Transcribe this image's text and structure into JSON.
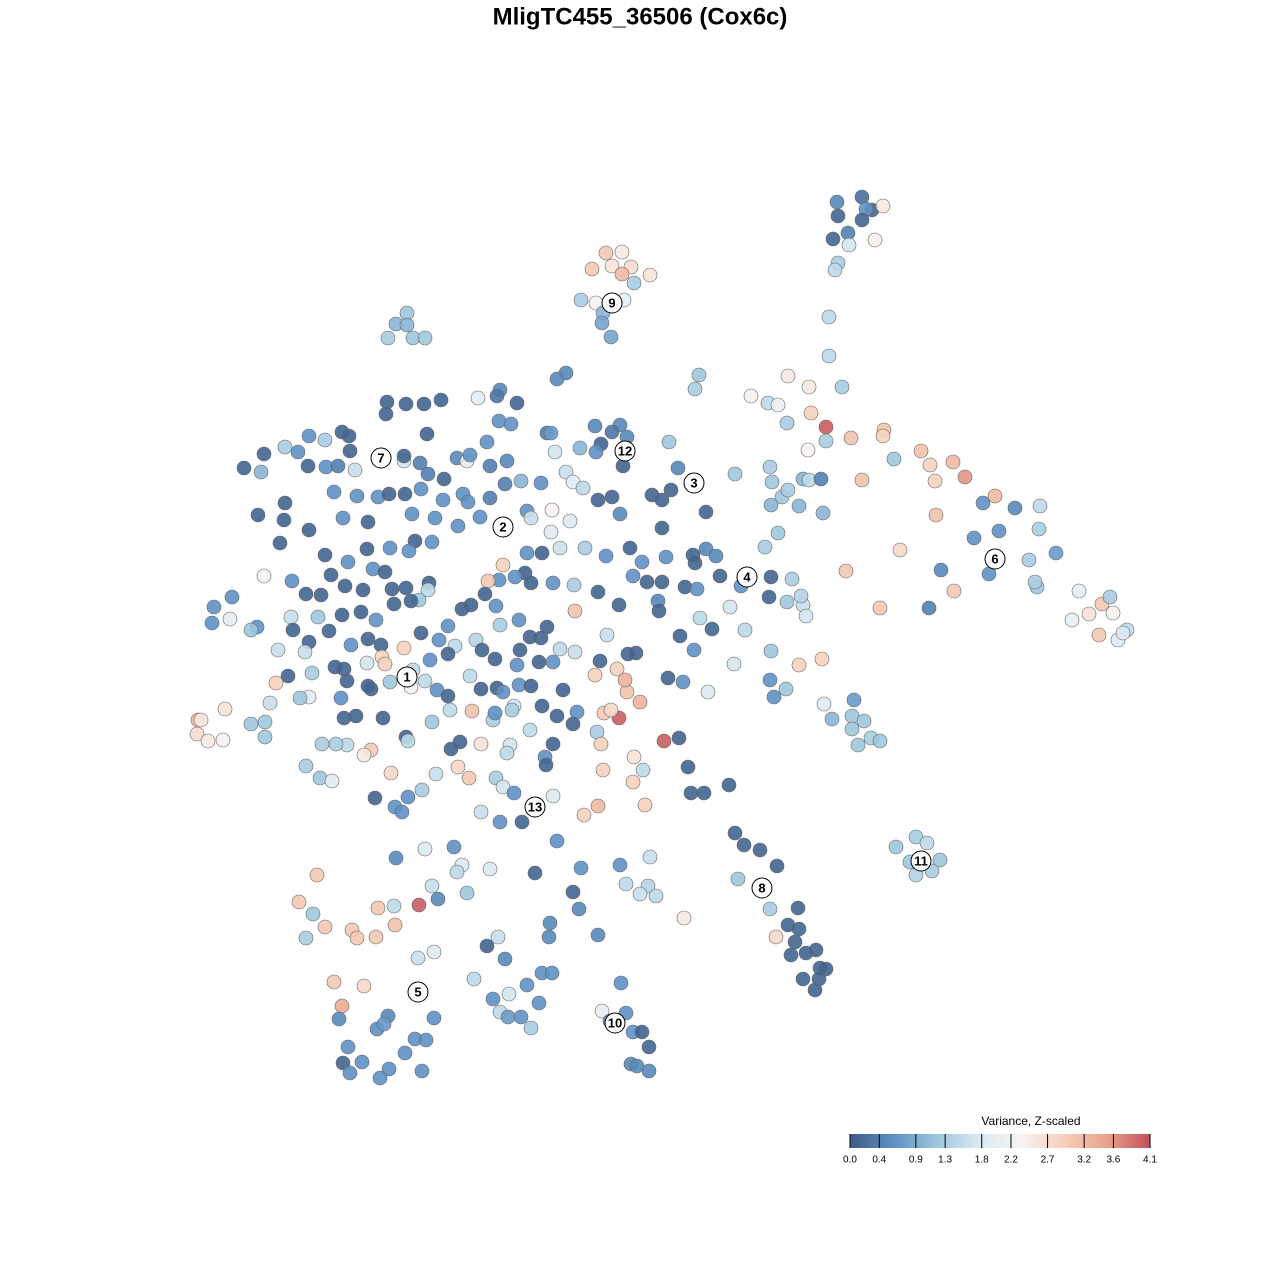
{
  "chart_data": {
    "type": "scatter",
    "title": "MligTC455_36506 (Cox6c)",
    "xlim": [
      190,
      1140
    ],
    "ylim": [
      1080,
      190
    ],
    "x": [
      862,
      837,
      872,
      883,
      866,
      838,
      862,
      833,
      848,
      875,
      849,
      838,
      835,
      829,
      829,
      606,
      622,
      592,
      612,
      631,
      622,
      650,
      634,
      581,
      596,
      624,
      603,
      602,
      611,
      407,
      396,
      407,
      388,
      413,
      425,
      566,
      557,
      500,
      478,
      497,
      517,
      387,
      406,
      424,
      441,
      386,
      499,
      511,
      595,
      620,
      627,
      547,
      551,
      612,
      601,
      580,
      596,
      623,
      555,
      427,
      669,
      699,
      695,
      244,
      264,
      285,
      298,
      309,
      325,
      342,
      349,
      261,
      308,
      326,
      350,
      338,
      355,
      404,
      404,
      420,
      428,
      444,
      457,
      467,
      470,
      490,
      507,
      487,
      505,
      521,
      541,
      566,
      573,
      583,
      598,
      612,
      620,
      652,
      671,
      662,
      678,
      706,
      662,
      735,
      706,
      716,
      751,
      768,
      778,
      788,
      809,
      842,
      811,
      826,
      787,
      826,
      808,
      851,
      884,
      883,
      894,
      921,
      930,
      953,
      965,
      935,
      862,
      770,
      772,
      803,
      809,
      821,
      799,
      782,
      788,
      823,
      771,
      778,
      765,
      995,
      936,
      983,
      1015,
      1040,
      974,
      999,
      1039,
      1029,
      989,
      1056,
      900,
      941,
      954,
      1037,
      1035,
      929,
      880,
      846,
      1079,
      1102,
      1110,
      1089,
      1113,
      1072,
      1099,
      1127,
      1118,
      1123,
      741,
      771,
      792,
      769,
      787,
      803,
      801,
      806,
      730,
      745,
      734,
      771,
      799,
      770,
      786,
      774,
      708,
      683,
      668,
      694,
      680,
      712,
      700,
      658,
      659,
      685,
      697,
      720,
      695,
      693,
      666,
      642,
      633,
      647,
      630,
      606,
      585,
      560,
      542,
      551,
      527,
      525,
      503,
      499,
      488,
      515,
      531,
      553,
      574,
      575,
      598,
      619,
      607,
      636,
      628,
      662,
      258,
      285,
      284,
      280,
      309,
      343,
      368,
      334,
      357,
      378,
      389,
      405,
      421,
      412,
      435,
      443,
      463,
      468,
      490,
      480,
      458,
      527,
      531,
      552,
      570,
      415,
      432,
      409,
      390,
      367,
      325,
      348,
      331,
      292,
      264,
      373,
      385,
      345,
      321,
      306,
      363,
      392,
      406,
      429,
      428,
      419,
      411,
      394,
      376,
      361,
      342,
      318,
      291,
      293,
      309,
      329,
      351,
      368,
      381,
      404,
      421,
      439,
      448,
      462,
      471,
      485,
      496,
      519,
      500,
      476,
      455,
      430,
      448,
      482,
      495,
      517,
      539,
      553,
      560,
      575,
      541,
      547,
      530,
      520,
      335,
      344,
      367,
      382,
      385,
      413,
      425,
      411,
      371,
      390,
      347,
      312,
      305,
      278,
      288,
      276,
      270,
      309,
      300,
      344,
      356,
      383,
      406,
      408,
      432,
      437,
      448,
      470,
      481,
      497,
      503,
      519,
      531,
      542,
      557,
      563,
      595,
      600,
      617,
      627,
      640,
      625,
      619,
      604,
      611,
      577,
      573,
      553,
      545,
      546,
      530,
      510,
      493,
      495,
      514,
      512,
      472,
      450,
      460,
      451,
      481,
      507,
      458,
      469,
      496,
      503,
      514,
      553,
      522,
      500,
      481,
      436,
      422,
      408,
      395,
      402,
      375,
      371,
      364,
      347,
      336,
      322,
      306,
      320,
      332,
      391,
      198,
      201,
      197,
      208,
      223,
      225,
      251,
      265,
      265,
      214,
      232,
      212,
      230,
      257,
      251,
      341,
      368,
      597,
      601,
      634,
      643,
      633,
      603,
      598,
      645,
      584,
      664,
      679,
      688,
      691,
      704,
      729,
      557,
      735,
      744,
      760,
      777,
      738,
      770,
      776,
      798,
      788,
      799,
      795,
      806,
      816,
      791,
      820,
      826,
      819,
      803,
      815,
      896,
      916,
      927,
      910,
      940,
      916,
      932,
      824,
      854,
      852,
      832,
      864,
      852,
      871,
      880,
      858,
      822,
      396,
      425,
      454,
      462,
      457,
      490,
      535,
      581,
      620,
      650,
      626,
      648,
      656,
      640,
      684,
      432,
      467,
      438,
      419,
      394,
      573,
      579,
      550,
      549,
      598,
      498,
      487,
      505,
      434,
      418,
      474,
      542,
      552,
      527,
      493,
      509,
      539,
      500,
      508,
      521,
      531,
      621,
      602,
      626,
      610,
      633,
      642,
      649,
      631,
      637,
      649,
      317,
      299,
      313,
      325,
      306,
      352,
      357,
      376,
      395,
      378,
      334,
      364,
      342,
      339,
      388,
      377,
      384,
      434,
      415,
      426,
      405,
      348,
      362,
      343,
      350,
      389,
      380,
      422
    ],
    "y": [
      197,
      202,
      210,
      206,
      209,
      216,
      220,
      239,
      233,
      240,
      245,
      263,
      270,
      317,
      356,
      253,
      252,
      269,
      266,
      267,
      274,
      275,
      283,
      300,
      303,
      300,
      313,
      323,
      337,
      313,
      324,
      325,
      338,
      338,
      338,
      373,
      379,
      390,
      398,
      396,
      403,
      402,
      404,
      404,
      400,
      414,
      421,
      424,
      426,
      425,
      437,
      433,
      433,
      432,
      444,
      448,
      452,
      466,
      452,
      434,
      442,
      375,
      389,
      468,
      454,
      447,
      452,
      436,
      440,
      432,
      436,
      472,
      466,
      467,
      451,
      466,
      470,
      461,
      456,
      463,
      474,
      479,
      458,
      461,
      455,
      466,
      461,
      442,
      484,
      481,
      483,
      472,
      482,
      488,
      500,
      497,
      514,
      495,
      490,
      500,
      468,
      512,
      528,
      474,
      549,
      556,
      396,
      403,
      405,
      376,
      387,
      387,
      413,
      427,
      423,
      441,
      450,
      438,
      430,
      436,
      459,
      451,
      465,
      462,
      477,
      481,
      480,
      467,
      482,
      479,
      480,
      479,
      506,
      497,
      490,
      513,
      505,
      533,
      547,
      496,
      515,
      503,
      508,
      506,
      538,
      531,
      529,
      560,
      574,
      553,
      550,
      570,
      591,
      587,
      582,
      608,
      608,
      571,
      591,
      604,
      597,
      614,
      613,
      620,
      635,
      630,
      640,
      633,
      586,
      577,
      579,
      597,
      602,
      605,
      596,
      616,
      607,
      630,
      664,
      651,
      665,
      680,
      689,
      697,
      692,
      682,
      678,
      650,
      636,
      629,
      618,
      601,
      611,
      587,
      589,
      576,
      563,
      555,
      557,
      562,
      576,
      582,
      548,
      556,
      548,
      548,
      553,
      532,
      553,
      573,
      565,
      580,
      581,
      577,
      583,
      583,
      585,
      611,
      592,
      605,
      635,
      653,
      654,
      582,
      515,
      503,
      520,
      543,
      530,
      518,
      522,
      492,
      496,
      497,
      494,
      494,
      489,
      514,
      518,
      500,
      494,
      502,
      498,
      517,
      526,
      511,
      518,
      510,
      521,
      541,
      542,
      551,
      548,
      549,
      555,
      562,
      575,
      581,
      576,
      569,
      572,
      586,
      595,
      594,
      590,
      589,
      588,
      583,
      590,
      600,
      601,
      604,
      620,
      612,
      615,
      617,
      617,
      630,
      642,
      631,
      645,
      639,
      645,
      648,
      633,
      640,
      626,
      609,
      605,
      594,
      606,
      620,
      625,
      640,
      646,
      660,
      654,
      650,
      659,
      665,
      662,
      662,
      649,
      652,
      638,
      627,
      637,
      650,
      667,
      669,
      663,
      657,
      664,
      670,
      681,
      687,
      689,
      682,
      681,
      673,
      652,
      650,
      676,
      683,
      703,
      697,
      698,
      718,
      716,
      718,
      737,
      741,
      722,
      690,
      696,
      676,
      689,
      688,
      692,
      685,
      686,
      706,
      716,
      690,
      675,
      661,
      669,
      692,
      702,
      680,
      718,
      713,
      710,
      712,
      724,
      744,
      757,
      765,
      730,
      745,
      720,
      713,
      706,
      710,
      711,
      710,
      742,
      749,
      744,
      753,
      767,
      778,
      778,
      787,
      793,
      796,
      822,
      822,
      812,
      774,
      790,
      797,
      807,
      812,
      798,
      750,
      755,
      745,
      744,
      744,
      766,
      778,
      781,
      773,
      720,
      720,
      734,
      741,
      740,
      709,
      724,
      737,
      722,
      607,
      597,
      623,
      619,
      627,
      630,
      698,
      686,
      732,
      744,
      757,
      770,
      782,
      770,
      806,
      805,
      815,
      741,
      738,
      767,
      793,
      793,
      785,
      841,
      833,
      845,
      850,
      866,
      879,
      909,
      937,
      908,
      925,
      929,
      942,
      953,
      950,
      955,
      968,
      969,
      979,
      979,
      990,
      847,
      837,
      843,
      862,
      860,
      875,
      871,
      704,
      700,
      716,
      719,
      721,
      729,
      738,
      741,
      745,
      659,
      858,
      849,
      847,
      865,
      872,
      869,
      873,
      868,
      865,
      857,
      884,
      886,
      896,
      894,
      918,
      886,
      893,
      899,
      905,
      906,
      892,
      909,
      923,
      937,
      935,
      937,
      946,
      959,
      952,
      958,
      979,
      973,
      973,
      985,
      999,
      994,
      1003,
      1012,
      1017,
      1017,
      1028,
      983,
      1011,
      1013,
      1021,
      1032,
      1032,
      1047,
      1064,
      1066,
      1071,
      875,
      902,
      914,
      927,
      938,
      930,
      938,
      937,
      925,
      908,
      982,
      986,
      1006,
      1019,
      1016,
      1029,
      1024,
      1018,
      1039,
      1040,
      1053,
      1047,
      1062,
      1063,
      1073,
      1069,
      1078,
      1071
    ],
    "values": [
      0.2,
      0.5,
      0.1,
      2.5,
      0.6,
      0.1,
      0.1,
      0.1,
      0.4,
      2.4,
      1.7,
      1.3,
      1.5,
      1.5,
      1.5,
      3.0,
      2.5,
      3.0,
      2.6,
      2.7,
      3.2,
      2.6,
      1.3,
      1.3,
      2.3,
      2.0,
      1.0,
      0.8,
      0.8,
      1.2,
      1.0,
      1.0,
      1.3,
      1.2,
      1.2,
      0.5,
      0.5,
      0.5,
      2.0,
      0.3,
      0.1,
      0.1,
      0.1,
      0.1,
      0.1,
      0.1,
      0.6,
      0.6,
      0.5,
      0.5,
      0.5,
      0.4,
      0.7,
      0.3,
      0.1,
      1.0,
      0.6,
      0.1,
      1.7,
      0.1,
      1.2,
      1.2,
      1.3,
      0.1,
      0.1,
      1.3,
      0.6,
      0.6,
      1.3,
      0.1,
      0.1,
      1.0,
      0.1,
      0.6,
      0.1,
      0.4,
      1.6,
      1.7,
      0.1,
      0.4,
      0.4,
      0.1,
      0.5,
      2.0,
      0.6,
      0.4,
      0.5,
      0.6,
      0.4,
      1.0,
      0.6,
      1.6,
      1.9,
      1.5,
      0.1,
      0.1,
      0.5,
      0.1,
      0.1,
      0.1,
      0.5,
      0.1,
      0.1,
      1.2,
      0.5,
      0.5,
      2.3,
      1.5,
      2.1,
      2.5,
      2.5,
      1.3,
      2.9,
      4.0,
      1.3,
      1.3,
      2.3,
      3.1,
      3.1,
      2.9,
      1.2,
      3.1,
      2.9,
      3.2,
      3.6,
      2.9,
      3.1,
      1.3,
      1.2,
      1.0,
      1.5,
      0.4,
      1.0,
      1.2,
      1.3,
      1.0,
      1.0,
      1.2,
      1.3,
      3.2,
      3.1,
      0.6,
      0.5,
      1.5,
      0.6,
      0.6,
      1.3,
      1.3,
      0.6,
      0.7,
      2.8,
      0.5,
      3.0,
      1.2,
      1.3,
      0.4,
      3.0,
      3.0,
      2.0,
      3.0,
      1.3,
      2.6,
      2.3,
      2.0,
      3.0,
      1.5,
      1.8,
      1.8,
      0.6,
      0.1,
      1.3,
      0.1,
      1.2,
      1.6,
      1.4,
      1.7,
      1.7,
      1.5,
      1.7,
      1.2,
      2.9,
      0.6,
      1.2,
      0.6,
      1.8,
      0.6,
      0.1,
      0.6,
      0.1,
      0.1,
      1.5,
      0.5,
      0.1,
      0.1,
      0.6,
      0.1,
      0.1,
      0.1,
      0.6,
      0.6,
      0.6,
      0.1,
      0.1,
      0.6,
      1.3,
      1.6,
      0.1,
      1.9,
      0.6,
      0.1,
      2.9,
      0.6,
      3.0,
      0.6,
      0.1,
      0.6,
      1.3,
      3.1,
      0.1,
      0.1,
      1.6,
      0.1,
      0.1,
      0.1,
      0.1,
      0.1,
      0.1,
      0.1,
      0.1,
      0.6,
      0.1,
      0.6,
      0.6,
      0.6,
      0.1,
      0.1,
      0.6,
      0.6,
      0.6,
      0.6,
      0.6,
      0.6,
      0.4,
      0.6,
      0.6,
      0.6,
      1.6,
      2.3,
      1.8,
      0.1,
      0.6,
      0.6,
      0.6,
      0.1,
      0.1,
      0.6,
      0.1,
      0.6,
      2.3,
      0.6,
      0.1,
      0.1,
      0.1,
      0.1,
      0.1,
      0.1,
      0.1,
      0.1,
      1.5,
      1.2,
      0.1,
      0.1,
      0.6,
      0.1,
      0.1,
      1.2,
      1.6,
      0.1,
      0.1,
      0.1,
      0.6,
      0.1,
      0.1,
      2.9,
      0.1,
      0.6,
      0.6,
      0.1,
      0.1,
      0.1,
      0.6,
      0.6,
      1.3,
      1.4,
      1.5,
      0.6,
      0.1,
      0.1,
      0.1,
      0.6,
      0.1,
      0.6,
      1.5,
      1.6,
      0.1,
      0.1,
      0.1,
      0.1,
      0.1,
      0.1,
      1.7,
      2.9,
      2.9,
      1.5,
      1.5,
      2.3,
      0.1,
      1.2,
      0.1,
      1.3,
      1.6,
      1.6,
      0.1,
      2.9,
      1.6,
      1.9,
      1.2,
      0.1,
      0.1,
      0.1,
      0.1,
      1.5,
      1.2,
      0.6,
      0.1,
      1.5,
      0.1,
      0.1,
      0.6,
      0.6,
      0.1,
      0.1,
      0.1,
      0.1,
      2.9,
      0.1,
      2.9,
      3.1,
      3.3,
      3.3,
      4.0,
      3.0,
      2.8,
      0.6,
      0.1,
      0.1,
      0.6,
      0.1,
      1.5,
      1.7,
      1.3,
      0.6,
      1.7,
      1.3,
      3.1,
      1.5,
      0.1,
      0.1,
      2.6,
      1.5,
      2.8,
      3.0,
      1.3,
      1.7,
      0.6,
      1.8,
      0.1,
      0.6,
      1.6,
      1.6,
      1.3,
      0.6,
      0.6,
      0.6,
      0.1,
      3.0,
      2.5,
      1.5,
      1.3,
      1.3,
      1.3,
      1.2,
      1.9,
      2.8,
      3.2,
      2.5,
      2.7,
      2.5,
      2.3,
      2.6,
      1.2,
      1.2,
      1.2,
      0.6,
      0.6,
      0.6,
      2.0,
      0.6,
      1.2,
      0.6,
      0.1,
      1.3,
      2.9,
      2.6,
      1.5,
      2.9,
      2.9,
      3.2,
      2.9,
      2.9,
      4.0,
      0.1,
      0.1,
      0.1,
      0.1,
      0.1,
      0.6,
      0.1,
      0.1,
      0.1,
      0.1,
      1.2,
      1.3,
      2.8,
      0.1,
      0.1,
      0.1,
      0.1,
      0.1,
      0.1,
      0.1,
      0.1,
      0.1,
      0.1,
      0.1,
      0.1,
      1.2,
      1.3,
      1.5,
      1.2,
      1.2,
      1.4,
      1.3,
      1.9,
      0.7,
      1.2,
      1.0,
      1.2,
      1.2,
      1.3,
      1.2,
      1.2,
      2.9,
      0.5,
      1.8,
      0.6,
      1.8,
      1.5,
      1.8,
      0.1,
      0.6,
      0.6,
      1.6,
      1.5,
      1.4,
      1.5,
      1.6,
      2.5,
      1.6,
      1.2,
      0.5,
      4.0,
      1.5,
      0.1,
      0.5,
      0.5,
      0.5,
      0.5,
      1.6,
      0.1,
      0.5,
      1.8,
      1.6,
      1.5,
      0.6,
      0.6,
      0.6,
      0.6,
      1.7,
      0.6,
      1.5,
      0.7,
      0.6,
      1.3,
      0.6,
      2.0,
      0.6,
      0.5,
      0.6,
      0.1,
      0.1,
      0.5,
      0.5,
      0.5,
      3.0,
      3.0,
      1.2,
      3.0,
      1.3,
      3.0,
      3.0,
      3.0,
      3.1,
      3.0,
      3.0,
      2.8,
      3.4,
      0.5,
      0.5,
      0.6,
      0.7,
      0.6,
      0.6,
      0.6,
      0.6,
      0.6,
      0.6,
      0.1,
      0.6,
      0.6,
      0.6,
      0.6
    ],
    "labels": [
      {
        "text": "1",
        "x": 407,
        "y": 677
      },
      {
        "text": "2",
        "x": 503,
        "y": 527
      },
      {
        "text": "3",
        "x": 694,
        "y": 483
      },
      {
        "text": "4",
        "x": 747,
        "y": 577
      },
      {
        "text": "5",
        "x": 418,
        "y": 992
      },
      {
        "text": "6",
        "x": 995,
        "y": 559
      },
      {
        "text": "7",
        "x": 381,
        "y": 458
      },
      {
        "text": "8",
        "x": 762,
        "y": 888
      },
      {
        "text": "9",
        "x": 612,
        "y": 303
      },
      {
        "text": "10",
        "x": 615,
        "y": 1023
      },
      {
        "text": "11",
        "x": 921,
        "y": 861
      },
      {
        "text": "12",
        "x": 625,
        "y": 451
      },
      {
        "text": "13",
        "x": 535,
        "y": 807
      }
    ],
    "colorbar": {
      "title": "Variance, Z-scaled",
      "lim": [
        0,
        4.1
      ],
      "ticks": [
        {
          "value": 0,
          "label": "0.0"
        },
        0.4,
        0.9,
        1.3,
        1.8,
        2.2,
        2.7,
        3.2,
        3.6,
        4.1
      ],
      "colors": [
        "#3d5c87",
        "#5d90c3",
        "#9bc5dc",
        "#dae9f2",
        "#f7f3f1",
        "#f6cfba",
        "#e9a18b",
        "#c4505b"
      ]
    }
  }
}
